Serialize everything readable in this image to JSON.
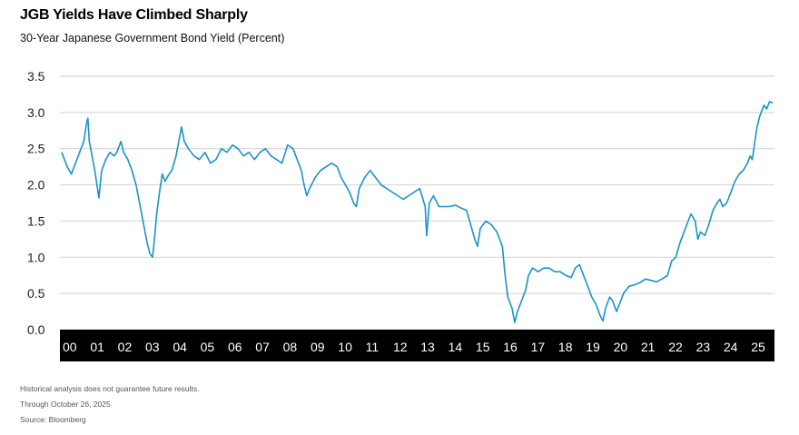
{
  "title": "JGB Yields Have Climbed Sharply",
  "subtitle": "30-Year Japanese Government Bond Yield (Percent)",
  "footnotes": [
    "Historical analysis does not guarantee future results.",
    "Through October 26, 2025",
    "Source: Bloomberg"
  ],
  "colors": {
    "line": "#1a93c9",
    "grid": "#d2d2d2",
    "axis_band": "#000000"
  },
  "chart_data": {
    "type": "line",
    "title": "JGB Yields Have Climbed Sharply",
    "subtitle": "30-Year Japanese Government Bond Yield (Percent)",
    "xlabel": "",
    "ylabel": "",
    "xlim": [
      2000.0,
      2025.85
    ],
    "ylim": [
      0.0,
      3.5
    ],
    "yticks": [
      "0.0",
      "0.5",
      "1.0",
      "1.5",
      "2.0",
      "2.5",
      "3.0",
      "3.5"
    ],
    "ytick_values": [
      0.0,
      0.5,
      1.0,
      1.5,
      2.0,
      2.5,
      3.0,
      3.5
    ],
    "xticks": [
      "00",
      "01",
      "02",
      "03",
      "04",
      "05",
      "06",
      "07",
      "08",
      "09",
      "10",
      "11",
      "12",
      "13",
      "14",
      "15",
      "16",
      "17",
      "18",
      "19",
      "20",
      "21",
      "22",
      "23",
      "24",
      "25"
    ],
    "xtick_values": [
      2000,
      2001,
      2002,
      2003,
      2004,
      2005,
      2006,
      2007,
      2008,
      2009,
      2010,
      2011,
      2012,
      2013,
      2014,
      2015,
      2016,
      2017,
      2018,
      2019,
      2020,
      2021,
      2022,
      2023,
      2024,
      2025
    ],
    "grid": "horizontal",
    "series": [
      {
        "values": [
          [
            2000.0,
            2.45
          ],
          [
            2000.1,
            2.35
          ],
          [
            2000.2,
            2.25
          ],
          [
            2000.35,
            2.15
          ],
          [
            2000.5,
            2.3
          ],
          [
            2000.65,
            2.45
          ],
          [
            2000.8,
            2.6
          ],
          [
            2000.9,
            2.85
          ],
          [
            2000.95,
            2.92
          ],
          [
            2001.0,
            2.6
          ],
          [
            2001.1,
            2.4
          ],
          [
            2001.2,
            2.2
          ],
          [
            2001.3,
            1.95
          ],
          [
            2001.35,
            1.82
          ],
          [
            2001.45,
            2.2
          ],
          [
            2001.6,
            2.35
          ],
          [
            2001.75,
            2.45
          ],
          [
            2001.9,
            2.4
          ],
          [
            2002.0,
            2.45
          ],
          [
            2002.15,
            2.6
          ],
          [
            2002.25,
            2.45
          ],
          [
            2002.4,
            2.35
          ],
          [
            2002.55,
            2.2
          ],
          [
            2002.7,
            2.0
          ],
          [
            2002.8,
            1.8
          ],
          [
            2002.9,
            1.6
          ],
          [
            2003.0,
            1.4
          ],
          [
            2003.1,
            1.2
          ],
          [
            2003.2,
            1.05
          ],
          [
            2003.3,
            1.0
          ],
          [
            2003.38,
            1.3
          ],
          [
            2003.45,
            1.6
          ],
          [
            2003.55,
            1.9
          ],
          [
            2003.65,
            2.15
          ],
          [
            2003.75,
            2.05
          ],
          [
            2003.9,
            2.15
          ],
          [
            2004.0,
            2.2
          ],
          [
            2004.15,
            2.4
          ],
          [
            2004.25,
            2.6
          ],
          [
            2004.35,
            2.8
          ],
          [
            2004.45,
            2.6
          ],
          [
            2004.6,
            2.5
          ],
          [
            2004.8,
            2.4
          ],
          [
            2005.0,
            2.35
          ],
          [
            2005.2,
            2.45
          ],
          [
            2005.4,
            2.3
          ],
          [
            2005.6,
            2.35
          ],
          [
            2005.8,
            2.5
          ],
          [
            2006.0,
            2.45
          ],
          [
            2006.2,
            2.55
          ],
          [
            2006.4,
            2.5
          ],
          [
            2006.6,
            2.4
          ],
          [
            2006.8,
            2.45
          ],
          [
            2007.0,
            2.35
          ],
          [
            2007.2,
            2.45
          ],
          [
            2007.4,
            2.5
          ],
          [
            2007.6,
            2.4
          ],
          [
            2007.8,
            2.35
          ],
          [
            2008.0,
            2.3
          ],
          [
            2008.2,
            2.55
          ],
          [
            2008.4,
            2.5
          ],
          [
            2008.55,
            2.35
          ],
          [
            2008.7,
            2.2
          ],
          [
            2008.8,
            2.0
          ],
          [
            2008.9,
            1.85
          ],
          [
            2009.0,
            1.95
          ],
          [
            2009.2,
            2.1
          ],
          [
            2009.4,
            2.2
          ],
          [
            2009.6,
            2.25
          ],
          [
            2009.8,
            2.3
          ],
          [
            2010.0,
            2.25
          ],
          [
            2010.15,
            2.1
          ],
          [
            2010.3,
            2.0
          ],
          [
            2010.45,
            1.9
          ],
          [
            2010.6,
            1.75
          ],
          [
            2010.7,
            1.7
          ],
          [
            2010.8,
            1.95
          ],
          [
            2011.0,
            2.1
          ],
          [
            2011.2,
            2.2
          ],
          [
            2011.4,
            2.1
          ],
          [
            2011.6,
            2.0
          ],
          [
            2011.8,
            1.95
          ],
          [
            2012.0,
            1.9
          ],
          [
            2012.2,
            1.85
          ],
          [
            2012.4,
            1.8
          ],
          [
            2012.6,
            1.85
          ],
          [
            2012.8,
            1.9
          ],
          [
            2013.0,
            1.95
          ],
          [
            2013.2,
            1.7
          ],
          [
            2013.25,
            1.3
          ],
          [
            2013.35,
            1.75
          ],
          [
            2013.5,
            1.85
          ],
          [
            2013.7,
            1.7
          ],
          [
            2013.9,
            1.7
          ],
          [
            2014.1,
            1.7
          ],
          [
            2014.3,
            1.72
          ],
          [
            2014.5,
            1.68
          ],
          [
            2014.7,
            1.65
          ],
          [
            2014.85,
            1.45
          ],
          [
            2015.0,
            1.25
          ],
          [
            2015.1,
            1.15
          ],
          [
            2015.2,
            1.4
          ],
          [
            2015.4,
            1.5
          ],
          [
            2015.6,
            1.45
          ],
          [
            2015.8,
            1.35
          ],
          [
            2016.0,
            1.15
          ],
          [
            2016.1,
            0.75
          ],
          [
            2016.2,
            0.45
          ],
          [
            2016.35,
            0.3
          ],
          [
            2016.45,
            0.1
          ],
          [
            2016.55,
            0.25
          ],
          [
            2016.7,
            0.4
          ],
          [
            2016.85,
            0.55
          ],
          [
            2016.95,
            0.75
          ],
          [
            2017.1,
            0.85
          ],
          [
            2017.3,
            0.8
          ],
          [
            2017.5,
            0.85
          ],
          [
            2017.7,
            0.85
          ],
          [
            2017.9,
            0.8
          ],
          [
            2018.1,
            0.8
          ],
          [
            2018.3,
            0.75
          ],
          [
            2018.5,
            0.72
          ],
          [
            2018.65,
            0.85
          ],
          [
            2018.8,
            0.9
          ],
          [
            2018.95,
            0.75
          ],
          [
            2019.1,
            0.6
          ],
          [
            2019.25,
            0.45
          ],
          [
            2019.4,
            0.35
          ],
          [
            2019.55,
            0.2
          ],
          [
            2019.65,
            0.12
          ],
          [
            2019.75,
            0.3
          ],
          [
            2019.9,
            0.45
          ],
          [
            2020.0,
            0.4
          ],
          [
            2020.15,
            0.25
          ],
          [
            2020.25,
            0.35
          ],
          [
            2020.4,
            0.5
          ],
          [
            2020.6,
            0.6
          ],
          [
            2020.8,
            0.62
          ],
          [
            2021.0,
            0.65
          ],
          [
            2021.2,
            0.7
          ],
          [
            2021.4,
            0.68
          ],
          [
            2021.6,
            0.66
          ],
          [
            2021.8,
            0.7
          ],
          [
            2022.0,
            0.75
          ],
          [
            2022.15,
            0.95
          ],
          [
            2022.3,
            1.0
          ],
          [
            2022.45,
            1.2
          ],
          [
            2022.6,
            1.35
          ],
          [
            2022.75,
            1.5
          ],
          [
            2022.85,
            1.6
          ],
          [
            2023.0,
            1.5
          ],
          [
            2023.1,
            1.25
          ],
          [
            2023.2,
            1.35
          ],
          [
            2023.35,
            1.3
          ],
          [
            2023.5,
            1.45
          ],
          [
            2023.65,
            1.65
          ],
          [
            2023.8,
            1.75
          ],
          [
            2023.9,
            1.8
          ],
          [
            2024.0,
            1.7
          ],
          [
            2024.15,
            1.75
          ],
          [
            2024.3,
            1.9
          ],
          [
            2024.45,
            2.05
          ],
          [
            2024.6,
            2.15
          ],
          [
            2024.75,
            2.2
          ],
          [
            2024.9,
            2.3
          ],
          [
            2025.0,
            2.4
          ],
          [
            2025.08,
            2.35
          ],
          [
            2025.15,
            2.55
          ],
          [
            2025.25,
            2.8
          ],
          [
            2025.35,
            2.95
          ],
          [
            2025.5,
            3.1
          ],
          [
            2025.6,
            3.05
          ],
          [
            2025.7,
            3.15
          ],
          [
            2025.82,
            3.13
          ]
        ]
      }
    ]
  }
}
